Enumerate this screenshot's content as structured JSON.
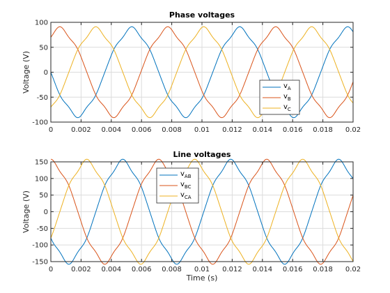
{
  "chart_data": [
    {
      "type": "line",
      "title": "Phase voltages",
      "xlabel": "",
      "ylabel": "Voltage (V)",
      "xlim": [
        0,
        0.02
      ],
      "ylim": [
        -100,
        100
      ],
      "xticks": [
        0,
        0.002,
        0.004,
        0.006,
        0.008,
        0.01,
        0.012,
        0.014,
        0.016,
        0.018,
        0.02
      ],
      "xtick_labels": [
        "0",
        "0.002",
        "0.004",
        "0.006",
        "0.008",
        "0.01",
        "0.012",
        "0.014",
        "0.016",
        "0.018",
        "0.02"
      ],
      "yticks": [
        -100,
        -50,
        0,
        50,
        100
      ],
      "ytick_labels": [
        "-100",
        "-50",
        "0",
        "50",
        "100"
      ],
      "grid": true,
      "legend_position": "lower-right",
      "waveform": {
        "amplitude": 86,
        "frequency_hz": 140
      },
      "series": [
        {
          "name": "v",
          "subscript": "A",
          "phase_deg": 180,
          "color": "#0072BD"
        },
        {
          "name": "v",
          "subscript": "B",
          "phase_deg": 60,
          "color": "#D95319"
        },
        {
          "name": "v",
          "subscript": "C",
          "phase_deg": -60,
          "color": "#EDB120"
        }
      ]
    },
    {
      "type": "line",
      "title": "Line voltages",
      "xlabel": "Time (s)",
      "ylabel": "Voltage (V)",
      "xlim": [
        0,
        0.02
      ],
      "ylim": [
        -150,
        150
      ],
      "xticks": [
        0,
        0.002,
        0.004,
        0.006,
        0.008,
        0.01,
        0.012,
        0.014,
        0.016,
        0.018,
        0.02
      ],
      "xtick_labels": [
        "0",
        "0.002",
        "0.004",
        "0.006",
        "0.008",
        "0.01",
        "0.012",
        "0.014",
        "0.016",
        "0.018",
        "0.02"
      ],
      "yticks": [
        -150,
        -100,
        -50,
        0,
        50,
        100,
        150
      ],
      "ytick_labels": [
        "-150",
        "-100",
        "-50",
        "0",
        "50",
        "100",
        "150"
      ],
      "grid": true,
      "legend_position": "top-center",
      "waveform": {
        "amplitude": 149,
        "frequency_hz": 140
      },
      "series": [
        {
          "name": "v",
          "subscript": "AB",
          "phase_deg": -150,
          "color": "#0072BD"
        },
        {
          "name": "v",
          "subscript": "BC",
          "phase_deg": 90,
          "color": "#D95319"
        },
        {
          "name": "v",
          "subscript": "CA",
          "phase_deg": -30,
          "color": "#EDB120"
        }
      ]
    }
  ]
}
